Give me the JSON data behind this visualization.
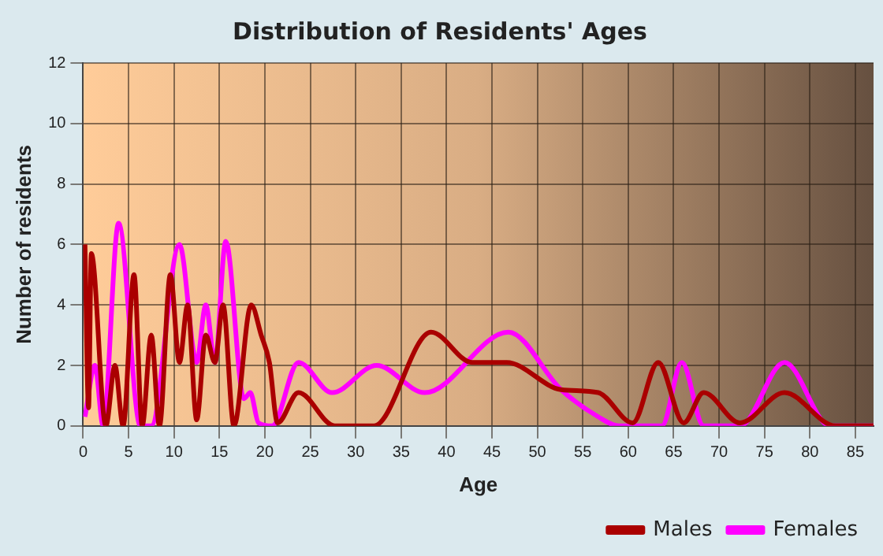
{
  "chart_data": {
    "type": "line",
    "title": "Distribution of Residents' Ages",
    "xlabel": "Age",
    "ylabel": "Number of residents",
    "xlim": [
      0,
      87
    ],
    "xticks": [
      0,
      5,
      10,
      15,
      20,
      25,
      30,
      35,
      40,
      45,
      50,
      55,
      60,
      65,
      70,
      75,
      80,
      85
    ],
    "ylim": [
      0,
      12
    ],
    "yticks": [
      0,
      2,
      4,
      6,
      8,
      10,
      12
    ],
    "grid": true,
    "legend": "bottom",
    "marker": "none",
    "series": [
      {
        "name": "Males",
        "color": "#aa0000",
        "x": [
          0.2,
          0.6,
          0.9,
          2.5,
          3.5,
          4.4,
          5.6,
          6.5,
          7.5,
          8.4,
          9.6,
          10.6,
          11.5,
          12.5,
          13.5,
          14.5,
          15.4,
          16.6,
          18.5,
          19.6,
          20.5,
          21.4,
          23.7,
          27.7,
          32,
          38.3,
          42.8,
          46.6,
          52.6,
          56.7,
          60.5,
          63.3,
          66.1,
          68.3,
          72.3,
          77.2,
          82.8,
          87
        ],
        "values": [
          6,
          0.6,
          5.7,
          0,
          2,
          0,
          5,
          0,
          3,
          0,
          5,
          2.1,
          4,
          0.2,
          3,
          2.1,
          4,
          0,
          4,
          3,
          2.1,
          0.1,
          1.1,
          0,
          0,
          3.1,
          2.1,
          2.1,
          1.2,
          1.1,
          0.1,
          2.1,
          0.1,
          1.1,
          0.1,
          1.1,
          0,
          0
        ]
      },
      {
        "name": "Females",
        "color": "#ff00ff",
        "x": [
          0.2,
          1.3,
          2.2,
          3.9,
          6.3,
          7.5,
          10.6,
          12.5,
          13.5,
          14.5,
          15.7,
          17.7,
          18.4,
          19.3,
          20.8,
          23.7,
          27.4,
          32.3,
          37.6,
          46.8,
          52.6,
          56.7,
          59,
          63.7,
          65.9,
          68.3,
          72.3,
          77.2,
          82.2,
          87
        ],
        "values": [
          0.3,
          2,
          0,
          6.7,
          0,
          0,
          6,
          2.1,
          4,
          2.1,
          6.1,
          0.9,
          1.1,
          0.1,
          0,
          2.1,
          1.1,
          2,
          1.1,
          3.1,
          1.2,
          0.3,
          0,
          0,
          2.1,
          0,
          0,
          2.1,
          0,
          0
        ]
      }
    ]
  }
}
